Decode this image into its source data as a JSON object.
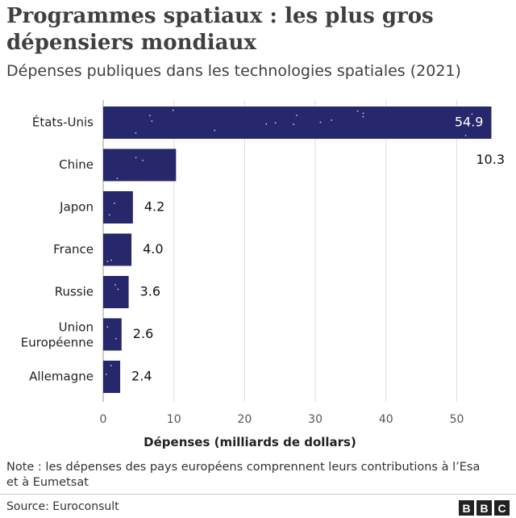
{
  "header": {
    "title": "Programmes spatiaux : les plus gros dépensiers mondiaux",
    "subtitle": "Dépenses publiques dans les technologies spatiales (2021)"
  },
  "chart_data": {
    "type": "bar",
    "orientation": "horizontal",
    "categories": [
      "États-Unis",
      "Chine",
      "Japon",
      "France",
      "Russie",
      "Union Européenne",
      "Allemagne"
    ],
    "values": [
      54.9,
      10.3,
      4.2,
      4.0,
      3.6,
      2.6,
      2.4
    ],
    "value_labels": [
      "54.9",
      "10.3",
      "4.2",
      "4.0",
      "3.6",
      "2.6",
      "2.4"
    ],
    "xlabel": "Dépenses (milliards de dollars)",
    "xlim": [
      0,
      56
    ],
    "xticks": [
      0,
      10,
      20,
      30,
      40,
      50
    ],
    "grid": true,
    "legend": "none",
    "bar_color": "#27276b",
    "star_color": "#c8c8ee"
  },
  "footer": {
    "note": "Note : les dépenses des pays européens comprennent leurs contributions à l’Esa et à Eumetsat",
    "source": "Source: Euroconsult",
    "logo_letters": [
      "B",
      "B",
      "C"
    ]
  }
}
